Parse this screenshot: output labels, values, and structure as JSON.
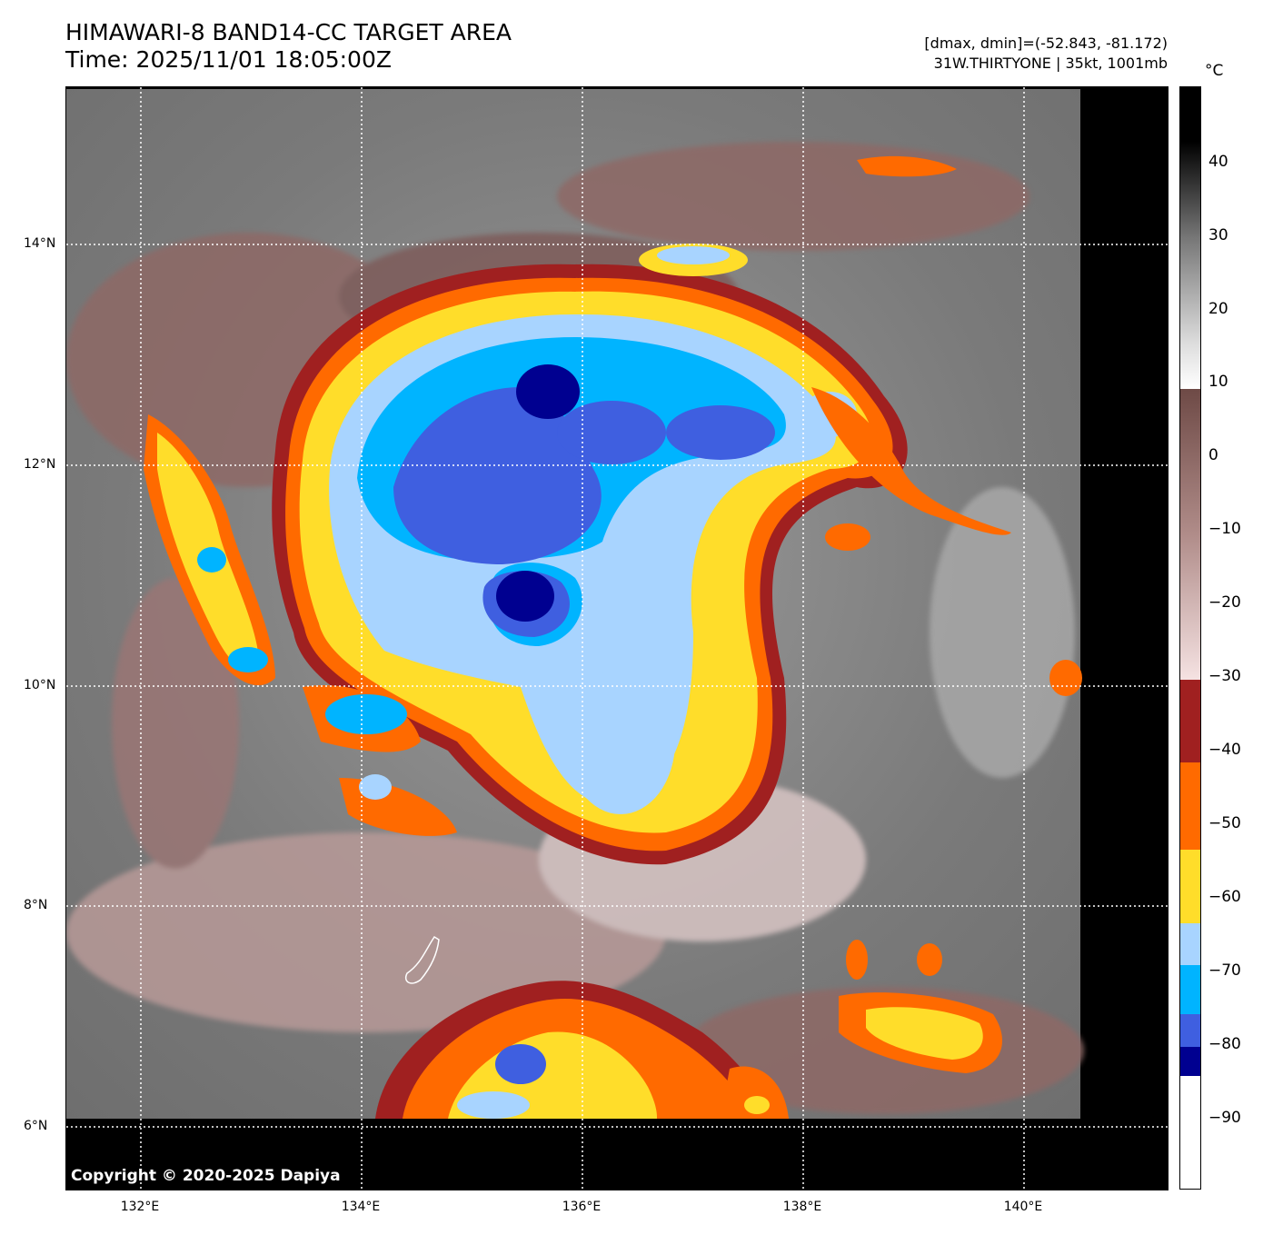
{
  "header": {
    "title": "HIMAWARI-8 BAND14-CC TARGET AREA",
    "time": "Time: 2025/11/01 18:05:00Z",
    "range": "[dmax, dmin]=(-52.843, -81.172)",
    "storm": "31W.THIRTYONE | 35kt, 1001mb"
  },
  "map": {
    "lat_labels": [
      "14°N",
      "12°N",
      "10°N",
      "8°N",
      "6°N"
    ],
    "lon_labels": [
      "132°E",
      "134°E",
      "136°E",
      "138°E",
      "140°E"
    ],
    "copyright": "Copyright © 2020-2025 Dapiya"
  },
  "colorbar": {
    "unit": "°C",
    "ticks": [
      "40",
      "30",
      "20",
      "10",
      "0",
      "−10",
      "−20",
      "−30",
      "−40",
      "−50",
      "−60",
      "−70",
      "−80",
      "−90"
    ],
    "colors": {
      "warm_black": "#000000",
      "grey_mid": "#888888",
      "white": "#ffffff",
      "brown": "#8a5a55",
      "pink": "#f0d5d5",
      "darkred": "#a02020",
      "orange": "#ff6a00",
      "yellow": "#ffdd2a",
      "lightblue": "#a8d4ff",
      "cyan": "#00b4ff",
      "blue": "#3f5fe0",
      "navy": "#000090"
    }
  }
}
